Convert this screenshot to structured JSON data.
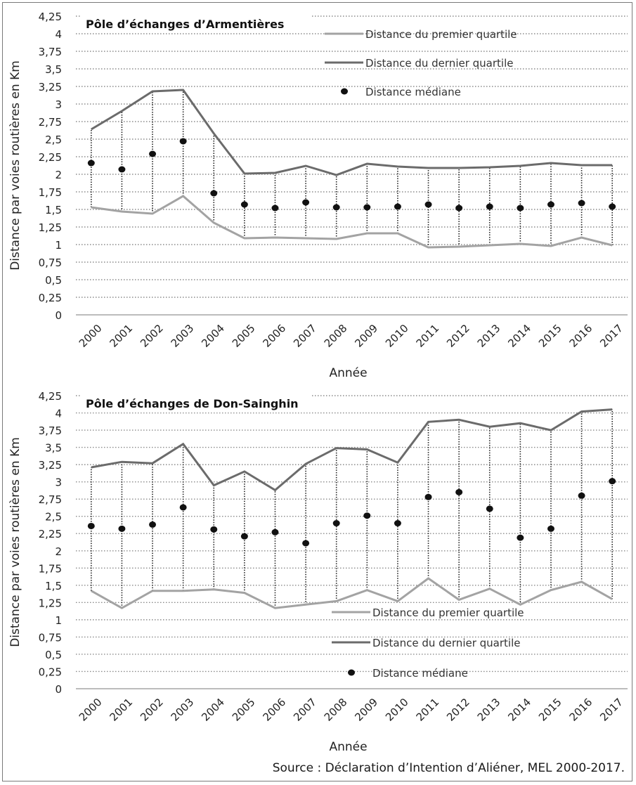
{
  "source": "Source : Déclaration d’Intention d’Aliéner, MEL 2000-2017.",
  "colors": {
    "q1_line": "#a3a3a3",
    "q3_line": "#6b6b6b",
    "median_marker": "#111111",
    "grid": "#8a8a8a",
    "range_rule": "#222222"
  },
  "chart_data": [
    {
      "type": "line",
      "title": "Pôle d’échanges d’Armentières",
      "xlabel": "Année",
      "ylabel": "Distance par voies routières en Km",
      "ylim": [
        0,
        4.25
      ],
      "yticks": [
        "0",
        "0,25",
        "0,5",
        "0,75",
        "1",
        "1,25",
        "1,5",
        "1,75",
        "2",
        "2,25",
        "2,5",
        "2,75",
        "3",
        "3,25",
        "3,5",
        "3,75",
        "4",
        "4,25"
      ],
      "categories": [
        "2000",
        "2001",
        "2002",
        "2003",
        "2004",
        "2005",
        "2006",
        "2007",
        "2008",
        "2009",
        "2010",
        "2011",
        "2012",
        "2013",
        "2014",
        "2015",
        "2016",
        "2017"
      ],
      "grid": true,
      "legend_position": "top-right",
      "series": [
        {
          "name": "Distance du premier quartile",
          "kind": "line",
          "values": [
            1.53,
            1.47,
            1.44,
            1.69,
            1.31,
            1.09,
            1.1,
            1.09,
            1.08,
            1.16,
            1.16,
            0.96,
            0.97,
            0.99,
            1.01,
            0.98,
            1.1,
            0.99
          ]
        },
        {
          "name": "Distance du dernier quartile",
          "kind": "line",
          "values": [
            2.64,
            2.9,
            3.18,
            3.2,
            2.58,
            2.01,
            2.02,
            2.12,
            1.99,
            2.15,
            2.11,
            2.09,
            2.09,
            2.1,
            2.12,
            2.16,
            2.13,
            2.13
          ]
        },
        {
          "name": "Distance médiane",
          "kind": "marker",
          "values": [
            2.16,
            2.07,
            2.29,
            2.47,
            1.73,
            1.57,
            1.52,
            1.6,
            1.53,
            1.53,
            1.54,
            1.57,
            1.52,
            1.54,
            1.52,
            1.57,
            1.59,
            1.54
          ]
        }
      ]
    },
    {
      "type": "line",
      "title": "Pôle d’échanges de Don-Sainghin",
      "xlabel": "Année",
      "ylabel": "Distance par voies routières en Km",
      "ylim": [
        0,
        4.25
      ],
      "yticks": [
        "0",
        "0,25",
        "0,5",
        "0,75",
        "1",
        "1,25",
        "1,5",
        "1,75",
        "2",
        "2,25",
        "2,5",
        "2,75",
        "3",
        "3,25",
        "3,5",
        "3,75",
        "4",
        "4,25"
      ],
      "categories": [
        "2000",
        "2001",
        "2002",
        "2003",
        "2004",
        "2005",
        "2006",
        "2007",
        "2008",
        "2009",
        "2010",
        "2011",
        "2012",
        "2013",
        "2014",
        "2015",
        "2016",
        "2017"
      ],
      "grid": true,
      "legend_position": "bottom-right",
      "series": [
        {
          "name": "Distance du premier quartile",
          "kind": "line",
          "values": [
            1.42,
            1.17,
            1.42,
            1.42,
            1.44,
            1.39,
            1.17,
            1.22,
            1.27,
            1.43,
            1.27,
            1.6,
            1.29,
            1.45,
            1.22,
            1.43,
            1.55,
            1.3
          ]
        },
        {
          "name": "Distance du dernier quartile",
          "kind": "line",
          "values": [
            3.21,
            3.29,
            3.27,
            3.55,
            2.95,
            3.15,
            2.88,
            3.26,
            3.49,
            3.47,
            3.28,
            3.87,
            3.9,
            3.8,
            3.85,
            3.75,
            4.02,
            4.05
          ]
        },
        {
          "name": "Distance médiane",
          "kind": "marker",
          "values": [
            2.36,
            2.32,
            2.38,
            2.63,
            2.31,
            2.21,
            2.27,
            2.11,
            2.4,
            2.51,
            2.4,
            2.78,
            2.85,
            2.61,
            2.19,
            2.32,
            2.8,
            3.01
          ]
        }
      ]
    }
  ]
}
